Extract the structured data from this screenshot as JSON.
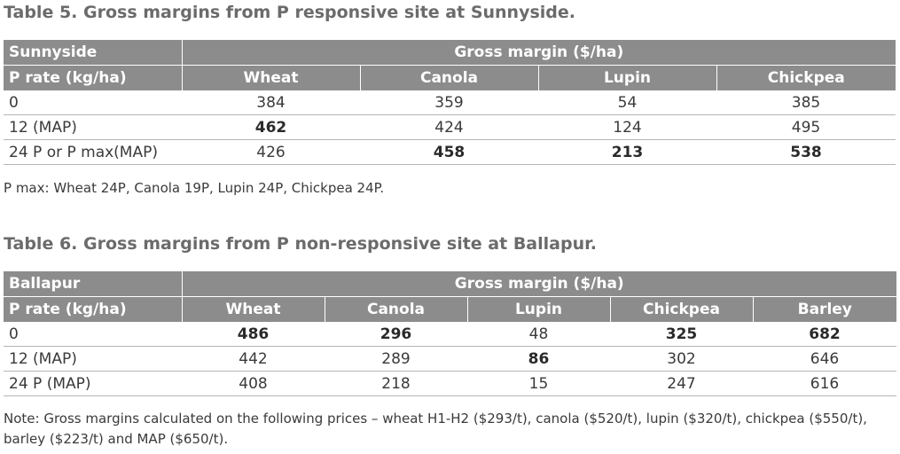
{
  "table5": {
    "caption": "Table 5. Gross margins from P responsive site at Sunnyside.",
    "site": "Sunnyside",
    "group_header": "Gross margin ($/ha)",
    "row_header": "P rate (kg/ha)",
    "columns": [
      "Wheat",
      "Canola",
      "Lupin",
      "Chickpea"
    ],
    "rows": [
      {
        "label": "0",
        "values": [
          "384",
          "359",
          "54",
          "385"
        ],
        "bold": [
          false,
          false,
          false,
          false
        ]
      },
      {
        "label": "12 (MAP)",
        "values": [
          "462",
          "424",
          "124",
          "495"
        ],
        "bold": [
          true,
          false,
          false,
          false
        ]
      },
      {
        "label": "24 P or P max(MAP)",
        "values": [
          "426",
          "458",
          "213",
          "538"
        ],
        "bold": [
          false,
          true,
          true,
          true
        ]
      }
    ],
    "note": "P max: Wheat 24P, Canola 19P, Lupin 24P, Chickpea 24P."
  },
  "table6": {
    "caption": "Table 6. Gross margins from P non-responsive site at Ballapur.",
    "site": "Ballapur",
    "group_header": "Gross margin ($/ha)",
    "row_header": "P rate (kg/ha)",
    "columns": [
      "Wheat",
      "Canola",
      "Lupin",
      "Chickpea",
      "Barley"
    ],
    "rows": [
      {
        "label": "0",
        "values": [
          "486",
          "296",
          "48",
          "325",
          "682"
        ],
        "bold": [
          true,
          true,
          false,
          true,
          true
        ]
      },
      {
        "label": "12 (MAP)",
        "values": [
          "442",
          "289",
          "86",
          "302",
          "646"
        ],
        "bold": [
          false,
          false,
          true,
          false,
          false
        ]
      },
      {
        "label": "24 P (MAP)",
        "values": [
          "408",
          "218",
          "15",
          "247",
          "616"
        ],
        "bold": [
          false,
          false,
          false,
          false,
          false
        ]
      }
    ],
    "note_line1": "Note: Gross margins calculated on the following prices – wheat H1-H2 ($293/t), canola ($520/t), lupin ($320/t), chickpea ($550/t),",
    "note_line2": "barley ($223/t) and MAP ($650/t)."
  }
}
